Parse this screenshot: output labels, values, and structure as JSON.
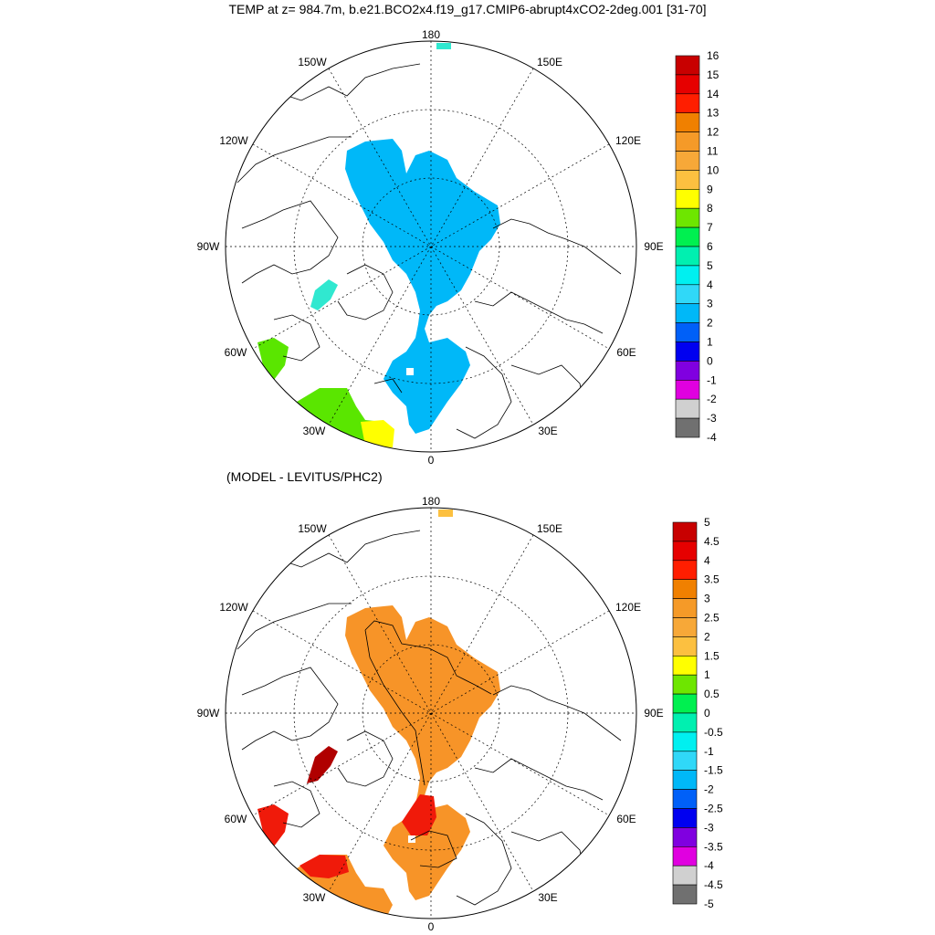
{
  "title": "TEMP at z= 984.7m, b.e21.BCO2x4.f19_g17.CMIP6-abrupt4xCO2-2deg.001 [31-70]",
  "subtitle": "(MODEL - LEVITUS/PHC2)",
  "colors": {
    "top_fill": "#00b8f8",
    "bottom_fill": "#f79428",
    "bottom_red": "#f01a0a",
    "bottom_darkred": "#b00000",
    "green": "#5ae600",
    "yellow": "#ffff00",
    "cyan": "#30e8d0"
  },
  "maps": [
    {
      "longitude_labels": [
        "180",
        "150W",
        "150E",
        "120W",
        "120E",
        "90W",
        "90E",
        "60W",
        "60E",
        "30W",
        "30E",
        "0"
      ],
      "colorbar": {
        "labels": [
          "16",
          "15",
          "14",
          "13",
          "12",
          "11",
          "10",
          "9",
          "8",
          "7",
          "6",
          "5",
          "4",
          "3",
          "2",
          "1",
          "0",
          "-1",
          "-2",
          "-3",
          "-4"
        ],
        "colors": [
          "#c80000",
          "#e60000",
          "#ff1e00",
          "#f08000",
          "#f59a28",
          "#f7a838",
          "#fcc040",
          "#ffff00",
          "#6ee600",
          "#00f050",
          "#00f0b0",
          "#00f0f0",
          "#30d8f8",
          "#00b8f8",
          "#0060f8",
          "#0000f0",
          "#8000e0",
          "#e000e0",
          "#d0d0d0",
          "#707070"
        ]
      }
    },
    {
      "longitude_labels": [
        "180",
        "150W",
        "150E",
        "120W",
        "120E",
        "90W",
        "90E",
        "60W",
        "60E",
        "30W",
        "30E",
        "0"
      ],
      "colorbar": {
        "labels": [
          "5",
          "4.5",
          "4",
          "3.5",
          "3",
          "2.5",
          "2",
          "1.5",
          "1",
          "0.5",
          "0",
          "-0.5",
          "-1",
          "-1.5",
          "-2",
          "-2.5",
          "-3",
          "-3.5",
          "-4",
          "-4.5",
          "-5"
        ],
        "colors": [
          "#c80000",
          "#e60000",
          "#ff1e00",
          "#f08000",
          "#f59a28",
          "#f7a838",
          "#fcc040",
          "#ffff00",
          "#6ee600",
          "#00f050",
          "#00f0b0",
          "#00f0f0",
          "#30d8f8",
          "#00b8f8",
          "#0060f8",
          "#0000f0",
          "#8000e0",
          "#e000e0",
          "#d0d0d0",
          "#707070"
        ]
      }
    }
  ]
}
